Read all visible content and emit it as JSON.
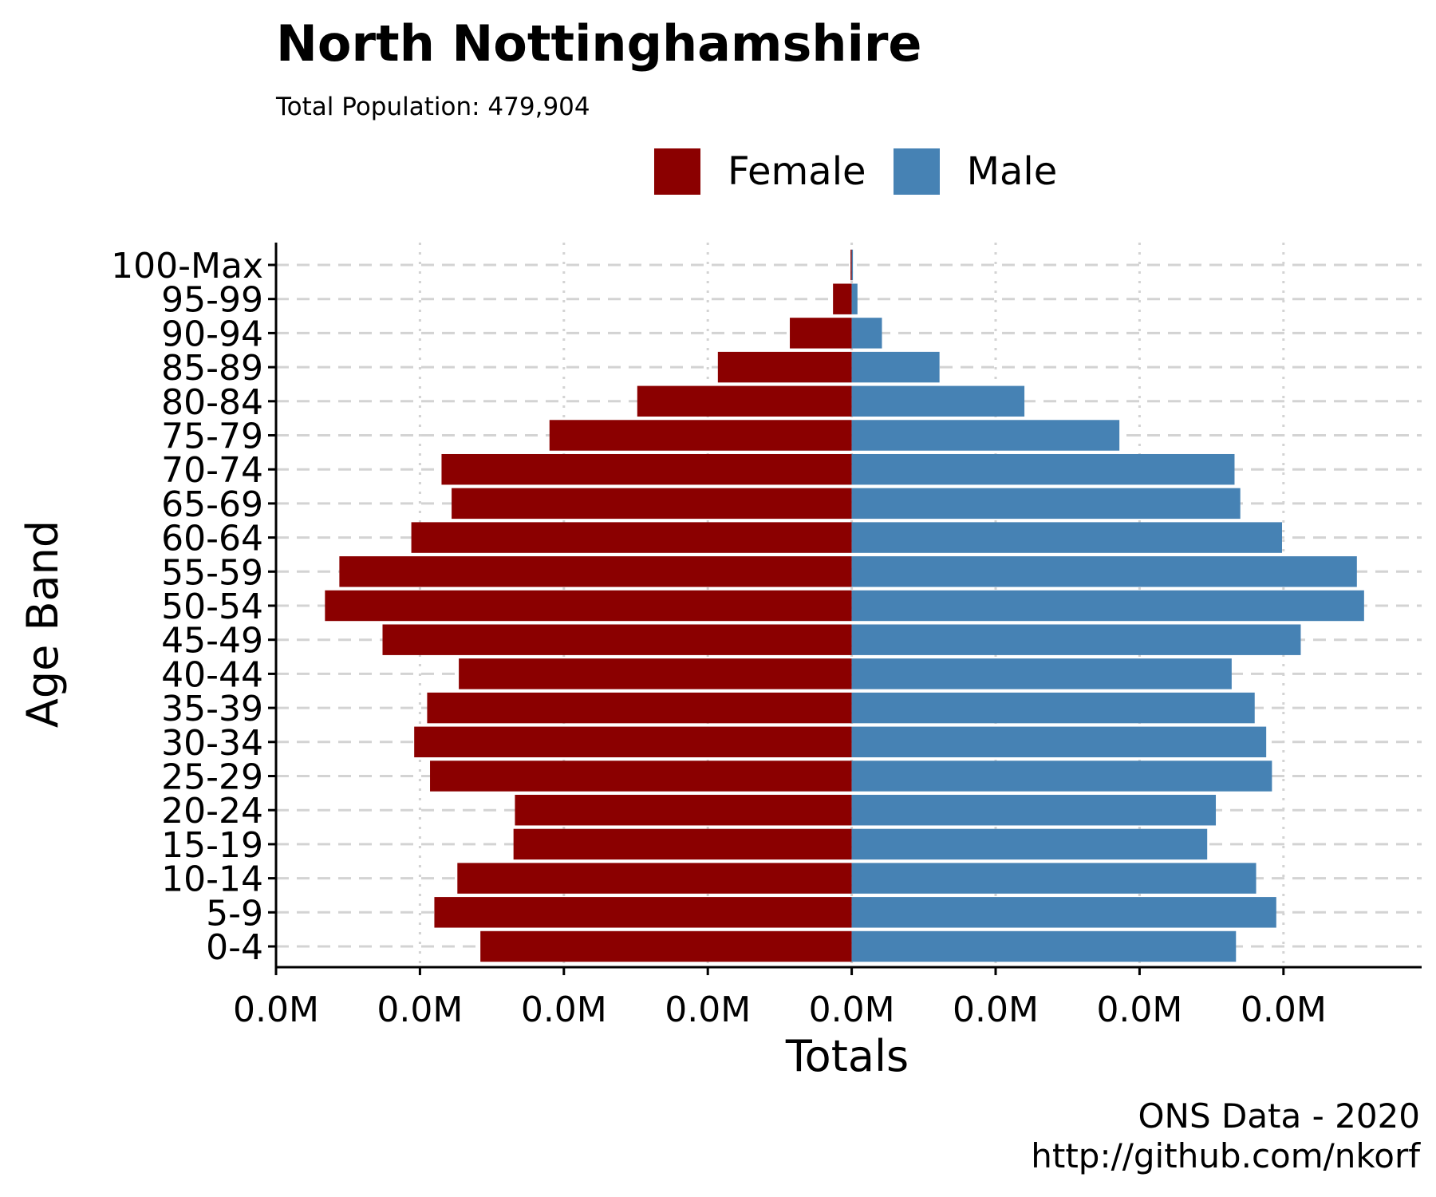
{
  "title": "North Nottinghamshire",
  "subtitle": "Total Population:  479,904",
  "caption_line1": "ONS Data - 2020",
  "caption_line2": "http://github.com/nkorf",
  "colors": {
    "female": "#8b0000",
    "male": "#4682b4",
    "grid": "#d3d3d3"
  },
  "chart_data": {
    "type": "bar",
    "orientation": "horizontal",
    "title": "North Nottinghamshire",
    "subtitle": "Total Population:  479,904",
    "xlabel": "Totals",
    "ylabel": "Age Band",
    "categories": [
      "0-4",
      "5-9",
      "10-14",
      "15-19",
      "20-24",
      "25-29",
      "30-34",
      "35-39",
      "40-44",
      "45-49",
      "50-54",
      "55-59",
      "60-64",
      "65-69",
      "70-74",
      "75-79",
      "80-84",
      "85-89",
      "90-94",
      "95-99",
      "100-Max"
    ],
    "series": [
      {
        "name": "Female",
        "values": [
          -12900,
          -14500,
          -13700,
          -11750,
          -11700,
          -14650,
          -15200,
          -14750,
          -13650,
          -16300,
          -18300,
          -17800,
          -15300,
          -13900,
          -14250,
          -10500,
          -7450,
          -4650,
          -2150,
          -650,
          -40
        ]
      },
      {
        "name": "Male",
        "values": [
          13350,
          14750,
          14050,
          12350,
          12650,
          14600,
          14400,
          14000,
          13200,
          15600,
          17800,
          17550,
          14950,
          13500,
          13300,
          9300,
          6000,
          3050,
          1050,
          200,
          10
        ]
      }
    ],
    "xlim": [
      -20000,
      19800
    ],
    "x_ticks": [
      -20000,
      -15000,
      -10000,
      -5000,
      0,
      5000,
      10000,
      15000
    ],
    "x_tick_labels": [
      "0.0M",
      "0.0M",
      "0.0M",
      "0.0M",
      "0.0M",
      "0.0M",
      "0.0M",
      "0.0M"
    ],
    "legend": [
      "Female",
      "Male"
    ],
    "legend_position": "top",
    "grid": {
      "major_y": "dashed",
      "major_x": "dotted"
    }
  }
}
